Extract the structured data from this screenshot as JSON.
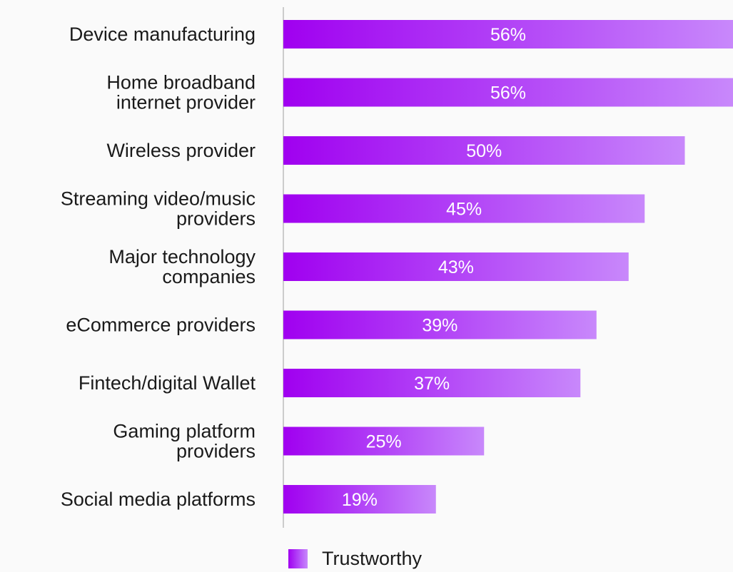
{
  "chart_data": {
    "type": "bar",
    "orientation": "horizontal",
    "categories": [
      [
        "Device manufacturing"
      ],
      [
        "Home broadband",
        "internet provider"
      ],
      [
        "Wireless provider"
      ],
      [
        "Streaming video/music",
        "providers"
      ],
      [
        "Major technology",
        "companies"
      ],
      [
        "eCommerce providers"
      ],
      [
        "Fintech/digital Wallet"
      ],
      [
        "Gaming platform",
        "providers"
      ],
      [
        "Social media platforms"
      ]
    ],
    "series": [
      {
        "name": "Trustworthy",
        "values": [
          56,
          56,
          50,
          45,
          43,
          39,
          37,
          25,
          19
        ],
        "value_labels": [
          "56%",
          "56%",
          "50%",
          "45%",
          "43%",
          "39%",
          "37%",
          "25%",
          "19%"
        ]
      }
    ],
    "xlim": [
      0,
      56
    ],
    "grid": false,
    "legend_position": "bottom",
    "colors": {
      "bar_start": "#a000f0",
      "bar_mid": "#b44cf8",
      "bar_end": "#c888fb",
      "axis": "#bdbdbd",
      "text": "#1a1a1a"
    }
  },
  "legend": {
    "label": "Trustworthy"
  }
}
